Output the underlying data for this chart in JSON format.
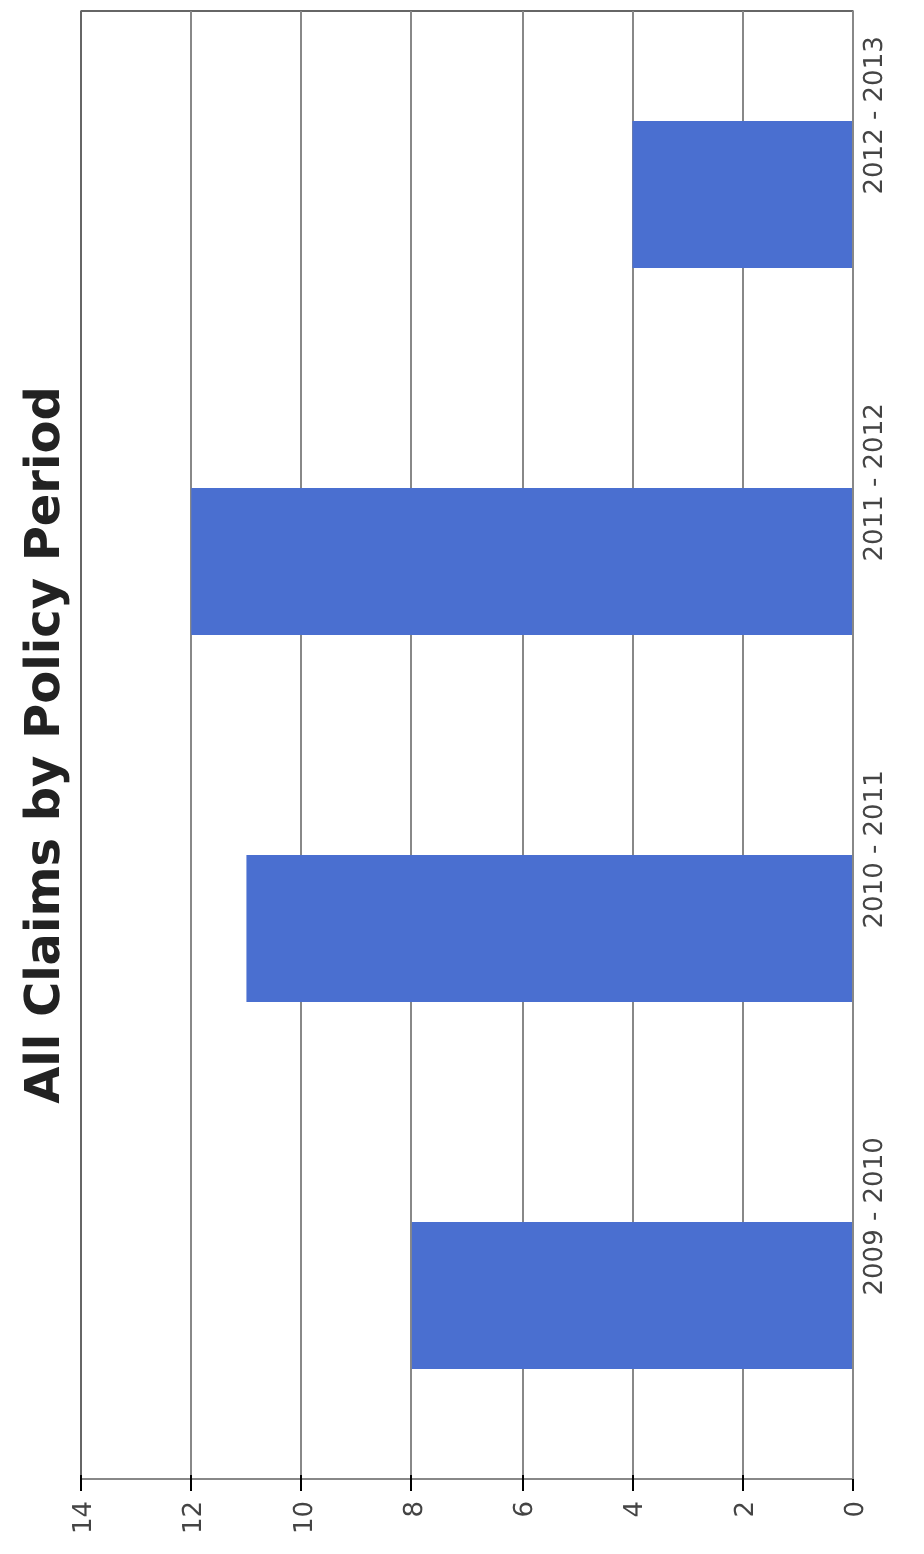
{
  "chart_data": {
    "type": "bar",
    "orientation": "horizontal",
    "title": "All Claims by Policy Period",
    "categories": [
      "2012 - 2013",
      "2011 - 2012",
      "2010 - 2011",
      "2009 - 2010"
    ],
    "values": [
      4,
      12,
      11,
      8
    ],
    "color": "#4a6fd0",
    "xlim": [
      14,
      0
    ],
    "xticks": [
      0,
      2,
      4,
      6,
      8,
      10,
      12,
      14
    ],
    "grid": "x"
  }
}
